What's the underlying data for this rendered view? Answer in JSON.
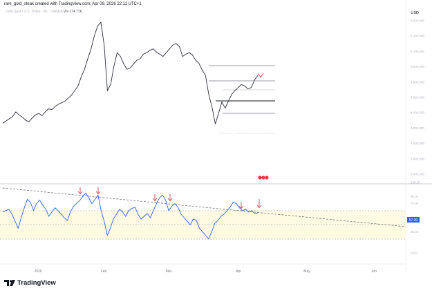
{
  "caption": "rare_gold_steak created with TradingView.com, Apr 09, 2026 22:11 UTC+1",
  "legend": {
    "symbol": "Gold Spot / U.S. Dollar · 4h · OANDA",
    "volume": "Vol 174.77K"
  },
  "currency": "USD",
  "logo": {
    "text": "TradingView"
  },
  "colors": {
    "price_line": "#2a2e39",
    "rsi_line": "#2962ff",
    "rsi_band": "#fffbe3",
    "arrow": "#e03e52",
    "rsi_value_bg": "#2962ff"
  },
  "chart_data": {
    "type": "line",
    "price_axis": {
      "ticks": [
        "5,600,000",
        "5,400,000",
        "5,200,000",
        "5,000,000",
        "4,800,000",
        "4,600,000",
        "4,400,000",
        "4,200,000",
        "4,000,000",
        "3,800,000",
        "3,600,000"
      ],
      "range": [
        3600,
        5620
      ]
    },
    "rsi_axis": {
      "ticks": [
        "100.00",
        "80.00",
        "70.00",
        "50.00",
        "30.00",
        "0.00"
      ],
      "range": [
        0,
        100
      ],
      "band": [
        30,
        70
      ],
      "current_value": "57.00"
    },
    "x_axis": {
      "labels": [
        "2026",
        "Feb",
        "Mar",
        "Apr",
        "May",
        "Jun"
      ]
    },
    "price_series": {
      "name": "",
      "values": [
        4270,
        4300,
        4330,
        4360,
        4420,
        4380,
        4350,
        4310,
        4290,
        4340,
        4380,
        4400,
        4370,
        4420,
        4460,
        4450,
        4490,
        4520,
        4540,
        4560,
        4600,
        4640,
        4700,
        4760,
        4880,
        4980,
        5120,
        5250,
        5420,
        5550,
        5600,
        5300,
        4700,
        4780,
        5020,
        5200,
        5150,
        5050,
        4980,
        5000,
        5050,
        5100,
        5120,
        5180,
        5200,
        5230,
        5250,
        5210,
        5180,
        5150,
        5200,
        5250,
        5300,
        5320,
        5280,
        5150,
        5180,
        5200,
        5170,
        5100,
        5060,
        4970,
        4900,
        4650,
        4480,
        4260,
        4400,
        4550,
        4470,
        4560,
        4650,
        4700,
        4740,
        4780,
        4760,
        4720,
        4740,
        4840,
        4900
      ]
    },
    "rsi_series": {
      "name": "",
      "values": [
        58,
        60,
        62,
        55,
        45,
        35,
        50,
        64,
        76,
        72,
        60,
        70,
        75,
        68,
        62,
        52,
        58,
        64,
        60,
        55,
        50,
        46,
        58,
        66,
        70,
        74,
        80,
        85,
        78,
        70,
        76,
        82,
        60,
        45,
        25,
        35,
        48,
        55,
        62,
        58,
        52,
        60,
        63,
        65,
        55,
        48,
        52,
        56,
        50,
        60,
        70,
        78,
        82,
        75,
        60,
        66,
        70,
        65,
        55,
        50,
        45,
        40,
        48,
        46,
        35,
        30,
        25,
        20,
        30,
        42,
        46,
        52,
        55,
        60,
        65,
        72,
        70,
        64,
        60,
        62,
        58,
        60,
        56,
        57
      ]
    },
    "rsi_arrows_count": 7,
    "price_arrows_count": 1
  }
}
